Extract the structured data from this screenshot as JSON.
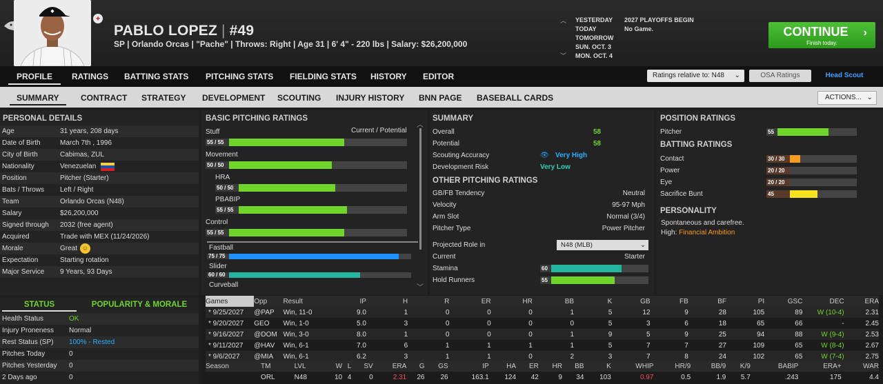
{
  "header": {
    "name": "PABLO LOPEZ",
    "number": "#49",
    "info": "SP | Orlando Orcas | \"Pache\" | Throws: Right | Age 31 | 6' 4\" - 220 lbs | Salary: $26,200,000",
    "schedule": [
      {
        "d": "YESTERDAY",
        "e": "2027 PLAYOFFS BEGIN"
      },
      {
        "d": "TODAY",
        "e": "No Game."
      },
      {
        "d": "TOMORROW",
        "e": ""
      },
      {
        "d": "SUN. OCT. 3",
        "e": ""
      },
      {
        "d": "MON. OCT. 4",
        "e": ""
      }
    ],
    "continue_label": "CONTINUE",
    "continue_sub": "Finish today."
  },
  "tabs1": [
    "PROFILE",
    "RATINGS",
    "BATTING STATS",
    "PITCHING STATS",
    "FIELDING STATS",
    "HISTORY",
    "EDITOR"
  ],
  "ratings_select": "Ratings relative to: N48",
  "osa": "OSA Ratings",
  "head_scout": "Head Scout",
  "tabs2": [
    "SUMMARY",
    "CONTRACT",
    "STRATEGY",
    "DEVELOPMENT",
    "SCOUTING",
    "INJURY HISTORY",
    "BNN PAGE",
    "BASEBALL CARDS"
  ],
  "actions": "ACTIONS...",
  "personal": {
    "title": "PERSONAL DETAILS",
    "rows": [
      [
        "Age",
        "31 years, 208 days"
      ],
      [
        "Date of Birth",
        "March 7th , 1996"
      ],
      [
        "City of Birth",
        "Cabimas, ZUL"
      ],
      [
        "Nationality",
        "Venezuelan"
      ],
      [
        "Position",
        "Pitcher (Starter)"
      ],
      [
        "Bats / Throws",
        "Left / Right"
      ],
      [
        "Team",
        "Orlando Orcas (N48)"
      ],
      [
        "Salary",
        "$26,200,000"
      ],
      [
        "Signed through",
        "2032 (free agent)"
      ],
      [
        "Acquired",
        "Trade with MEX (11/24/2026)"
      ],
      [
        "Morale",
        "Great"
      ],
      [
        "Expectation",
        "Starting rotation"
      ],
      [
        "Major Service",
        "9 Years, 93 Days"
      ]
    ]
  },
  "status": {
    "tab1": "STATUS",
    "tab2": "POPULARITY & MORALE",
    "rows": [
      [
        "Health Status",
        "OK"
      ],
      [
        "Injury Proneness",
        "Normal"
      ],
      [
        "Rest Status (SP)",
        "100% - Rested"
      ],
      [
        "Pitches Today",
        "0"
      ],
      [
        "Pitches Yesterday",
        "0"
      ],
      [
        "2 Days ago",
        "0"
      ]
    ]
  },
  "basic": {
    "title": "BASIC PITCHING RATINGS",
    "cp": "Current / Potential",
    "items": [
      {
        "label": "Stuff",
        "badge": "55 / 55",
        "value": 55,
        "indent": false,
        "color": "#6fd52b"
      },
      {
        "label": "Movement",
        "badge": "50 / 50",
        "value": 50,
        "indent": false,
        "color": "#6fd52b"
      },
      {
        "label": "HRA",
        "badge": "50 / 50",
        "value": 50,
        "indent": true,
        "color": "#6fd52b"
      },
      {
        "label": "PBABIP",
        "badge": "55 / 55",
        "value": 55,
        "indent": true,
        "color": "#6fd52b"
      },
      {
        "label": "Control",
        "badge": "55 / 55",
        "value": 55,
        "indent": false,
        "color": "#6fd52b"
      }
    ],
    "pitches": [
      {
        "label": "Fastball",
        "badge": "75 / 75",
        "value": 75,
        "color": "#1e90ff"
      },
      {
        "label": "Slider",
        "badge": "60 / 60",
        "value": 60,
        "color": "#23b5a0"
      },
      {
        "label": "Curveball",
        "badge": "",
        "value": 0,
        "color": "#23b5a0"
      }
    ]
  },
  "summary": {
    "title": "SUMMARY",
    "overall_l": "Overall",
    "overall": "58",
    "potential_l": "Potential",
    "potential": "58",
    "scout_l": "Scouting Accuracy",
    "scout": "Very High",
    "dev_l": "Development Risk",
    "dev": "Very Low",
    "other_title": "OTHER PITCHING RATINGS",
    "other": [
      [
        "GB/FB Tendency",
        "Neutral"
      ],
      [
        "Velocity",
        "95-97 Mph"
      ],
      [
        "Arm Slot",
        "Normal (3/4)"
      ],
      [
        "Pitcher Type",
        "Power Pitcher"
      ]
    ],
    "proj_l": "Projected Role in",
    "proj": "N48 (MLB)",
    "current_l": "Current",
    "current": "Starter",
    "stamina_l": "Stamina",
    "stamina": 60,
    "hold_l": "Hold Runners",
    "hold": 55
  },
  "position": {
    "title": "POSITION RATINGS",
    "pitcher_l": "Pitcher",
    "pitcher": 55,
    "bat_title": "BATTING RATINGS",
    "bat": [
      {
        "label": "Contact",
        "badge": "30 / 30",
        "value": 30,
        "color": "#f89b1e"
      },
      {
        "label": "Power",
        "badge": "20 / 20",
        "value": 20,
        "color": "#f05050"
      },
      {
        "label": "Eye",
        "badge": "20 / 20",
        "value": 20,
        "color": "#f05050"
      },
      {
        "label": "Sacrifice Bunt",
        "badge": "45",
        "value": 45,
        "color": "#f6e21e"
      }
    ],
    "pers_title": "PERSONALITY",
    "pers1": "Spontaneous and carefree.",
    "pers2_l": "High:",
    "pers2": "Financial Ambition"
  },
  "games": {
    "headers": [
      "Games",
      "Opp",
      "Result",
      "IP",
      "H",
      "R",
      "ER",
      "HR",
      "BB",
      "K",
      "GB",
      "FB",
      "BF",
      "PI",
      "GSC",
      "DEC",
      "ERA"
    ],
    "rows": [
      [
        "* 9/25/2027",
        "@PAP",
        "Win, 11-0",
        "9.0",
        "1",
        "0",
        "0",
        "0",
        "1",
        "5",
        "12",
        "9",
        "28",
        "105",
        "89",
        "W (10-4)",
        "2.31"
      ],
      [
        "* 9/20/2027",
        "GEO",
        "Win, 1-0",
        "5.0",
        "3",
        "0",
        "0",
        "0",
        "0",
        "5",
        "3",
        "6",
        "18",
        "65",
        "66",
        "-",
        "2.45"
      ],
      [
        "* 9/16/2027",
        "@DOM",
        "Win, 3-0",
        "8.0",
        "1",
        "0",
        "0",
        "0",
        "1",
        "9",
        "5",
        "9",
        "25",
        "94",
        "88",
        "W (9-4)",
        "2.53"
      ],
      [
        "* 9/11/2027",
        "@HAV",
        "Win, 6-1",
        "7.0",
        "6",
        "1",
        "1",
        "1",
        "1",
        "5",
        "7",
        "7",
        "27",
        "109",
        "65",
        "W (8-4)",
        "2.67"
      ],
      [
        "* 9/6/2027",
        "@MIA",
        "Win, 6-1",
        "6.2",
        "3",
        "1",
        "1",
        "0",
        "2",
        "3",
        "7",
        "8",
        "24",
        "102",
        "65",
        "W (7-4)",
        "2.75"
      ]
    ]
  },
  "season": {
    "headers": [
      "Season",
      "TM",
      "LVL",
      "W",
      "L",
      "SV",
      "ERA",
      "G",
      "GS",
      "IP",
      "HA",
      "ER",
      "HR",
      "BB",
      "K",
      "WHIP",
      "HR/9",
      "BB/9",
      "K/9",
      "BABIP",
      "ERA+",
      "WAR"
    ],
    "row": [
      "",
      "ORL",
      "N48",
      "10",
      "4",
      "0",
      "2.31",
      "26",
      "26",
      "163.1",
      "124",
      "42",
      "9",
      "34",
      "103",
      "0.97",
      "0.5",
      "1.9",
      "5.7",
      ".243",
      "175",
      "4.4"
    ]
  }
}
